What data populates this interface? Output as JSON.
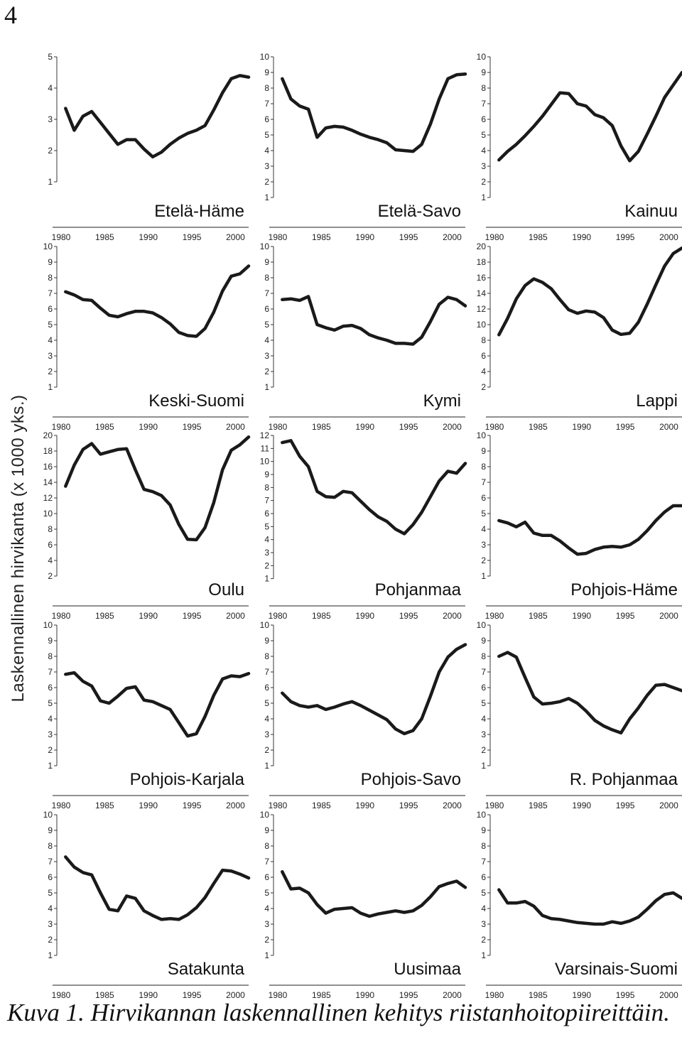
{
  "page_number": "4",
  "ylabel": "Laskennallinen hirvikanta (x 1000 yks.)",
  "caption": "Kuva 1. Hirvikannan laskennallinen kehitys riistanhoitopiireittäin.",
  "line_color": "#1a1a1a",
  "chart_data": [
    {
      "type": "line",
      "title": "Etelä-Häme",
      "xlim": [
        1980,
        2002
      ],
      "ylim": [
        0,
        5
      ],
      "yticks": [
        1,
        2,
        3,
        4,
        5
      ],
      "xticks": [
        1980,
        1985,
        1990,
        1995,
        2000
      ],
      "x": [
        1981,
        1982,
        1983,
        1984,
        1985,
        1986,
        1987,
        1988,
        1989,
        1990,
        1991,
        1992,
        1993,
        1994,
        1995,
        1996,
        1997,
        1998,
        1999,
        2000,
        2001,
        2002
      ],
      "values": [
        3.35,
        2.65,
        3.1,
        3.25,
        2.9,
        2.55,
        2.2,
        2.35,
        2.35,
        2.05,
        1.8,
        1.95,
        2.2,
        2.4,
        2.55,
        2.65,
        2.8,
        3.3,
        3.85,
        4.3,
        4.4,
        4.35
      ]
    },
    {
      "type": "line",
      "title": "Etelä-Savo",
      "xlim": [
        1980,
        2002
      ],
      "ylim": [
        0,
        10
      ],
      "yticks": [
        1,
        2,
        3,
        4,
        5,
        6,
        7,
        8,
        9,
        10
      ],
      "xticks": [
        1980,
        1985,
        1990,
        1995,
        2000
      ],
      "x": [
        1981,
        1982,
        1983,
        1984,
        1985,
        1986,
        1987,
        1988,
        1989,
        1990,
        1991,
        1992,
        1993,
        1994,
        1995,
        1996,
        1997,
        1998,
        1999,
        2000,
        2001,
        2002
      ],
      "values": [
        8.6,
        7.3,
        6.85,
        6.65,
        4.85,
        5.45,
        5.55,
        5.5,
        5.3,
        5.05,
        4.85,
        4.7,
        4.5,
        4.05,
        4.0,
        3.95,
        4.4,
        5.7,
        7.3,
        8.6,
        8.85,
        8.9
      ]
    },
    {
      "type": "line",
      "title": "Kainuu",
      "xlim": [
        1980,
        2002
      ],
      "ylim": [
        0,
        10
      ],
      "yticks": [
        1,
        2,
        3,
        4,
        5,
        6,
        7,
        8,
        9,
        10
      ],
      "xticks": [
        1980,
        1985,
        1990,
        1995,
        2000
      ],
      "x": [
        1981,
        1982,
        1983,
        1984,
        1985,
        1986,
        1987,
        1988,
        1989,
        1990,
        1991,
        1992,
        1993,
        1994,
        1995,
        1996,
        1997,
        1998,
        1999,
        2000,
        2001,
        2002
      ],
      "values": [
        3.4,
        3.95,
        4.4,
        4.95,
        5.55,
        6.2,
        6.95,
        7.7,
        7.65,
        7.0,
        6.85,
        6.3,
        6.1,
        5.6,
        4.3,
        3.35,
        3.95,
        5.05,
        6.2,
        7.4,
        8.2,
        9.0
      ]
    },
    {
      "type": "line",
      "title": "Keski-Suomi",
      "xlim": [
        1980,
        2002
      ],
      "ylim": [
        0,
        10
      ],
      "yticks": [
        1,
        2,
        3,
        4,
        5,
        6,
        7,
        8,
        9,
        10
      ],
      "xticks": [
        1980,
        1985,
        1990,
        1995,
        2000
      ],
      "x": [
        1981,
        1982,
        1983,
        1984,
        1985,
        1986,
        1987,
        1988,
        1989,
        1990,
        1991,
        1992,
        1993,
        1994,
        1995,
        1996,
        1997,
        1998,
        1999,
        2000,
        2001,
        2002
      ],
      "values": [
        7.1,
        6.9,
        6.6,
        6.55,
        6.05,
        5.6,
        5.5,
        5.7,
        5.85,
        5.85,
        5.75,
        5.45,
        5.05,
        4.5,
        4.3,
        4.25,
        4.75,
        5.8,
        7.15,
        8.1,
        8.25,
        8.75
      ]
    },
    {
      "type": "line",
      "title": "Kymi",
      "xlim": [
        1980,
        2002
      ],
      "ylim": [
        0,
        10
      ],
      "yticks": [
        1,
        2,
        3,
        4,
        5,
        6,
        7,
        8,
        9,
        10
      ],
      "xticks": [
        1980,
        1985,
        1990,
        1995,
        2000
      ],
      "x": [
        1981,
        1982,
        1983,
        1984,
        1985,
        1986,
        1987,
        1988,
        1989,
        1990,
        1991,
        1992,
        1993,
        1994,
        1995,
        1996,
        1997,
        1998,
        1999,
        2000,
        2001,
        2002
      ],
      "values": [
        6.6,
        6.65,
        6.55,
        6.8,
        5.0,
        4.8,
        4.65,
        4.9,
        4.95,
        4.75,
        4.35,
        4.15,
        4.0,
        3.8,
        3.8,
        3.75,
        4.2,
        5.2,
        6.3,
        6.75,
        6.6,
        6.2
      ]
    },
    {
      "type": "line",
      "title": "Lappi",
      "xlim": [
        1980,
        2002
      ],
      "ylim": [
        0,
        20
      ],
      "yticks": [
        2,
        4,
        6,
        8,
        10,
        12,
        14,
        16,
        18,
        20
      ],
      "xticks": [
        1980,
        1985,
        1990,
        1995,
        2000
      ],
      "x": [
        1981,
        1982,
        1983,
        1984,
        1985,
        1986,
        1987,
        1988,
        1989,
        1990,
        1991,
        1992,
        1993,
        1994,
        1995,
        1996,
        1997,
        1998,
        1999,
        2000,
        2001,
        2002
      ],
      "values": [
        8.7,
        10.8,
        13.3,
        15.0,
        15.85,
        15.4,
        14.6,
        13.2,
        11.9,
        11.45,
        11.75,
        11.6,
        10.9,
        9.3,
        8.75,
        8.9,
        10.3,
        12.6,
        15.1,
        17.5,
        19.1,
        19.8
      ]
    },
    {
      "type": "line",
      "title": "Oulu",
      "xlim": [
        1980,
        2002
      ],
      "ylim": [
        0,
        20
      ],
      "yticks": [
        2,
        4,
        6,
        8,
        10,
        12,
        14,
        16,
        18,
        20
      ],
      "xticks": [
        1980,
        1985,
        1990,
        1995,
        2000
      ],
      "x": [
        1981,
        1982,
        1983,
        1984,
        1985,
        1986,
        1987,
        1988,
        1989,
        1990,
        1991,
        1992,
        1993,
        1994,
        1995,
        1996,
        1997,
        1998,
        1999,
        2000,
        2001,
        2002
      ],
      "values": [
        13.5,
        16.2,
        18.2,
        18.95,
        17.6,
        17.9,
        18.2,
        18.3,
        15.6,
        13.1,
        12.8,
        12.3,
        11.1,
        8.6,
        6.7,
        6.65,
        8.2,
        11.4,
        15.6,
        18.1,
        18.8,
        19.8
      ]
    },
    {
      "type": "line",
      "title": "Pohjanmaa",
      "xlim": [
        1980,
        2002
      ],
      "ylim": [
        0,
        12
      ],
      "yticks": [
        1,
        2,
        3,
        4,
        5,
        6,
        7,
        8,
        9,
        10,
        11,
        12
      ],
      "xticks": [
        1980,
        1985,
        1990,
        1995,
        2000
      ],
      "x": [
        1981,
        1982,
        1983,
        1984,
        1985,
        1986,
        1987,
        1988,
        1989,
        1990,
        1991,
        1992,
        1993,
        1994,
        1995,
        1996,
        1997,
        1998,
        1999,
        2000,
        2001,
        2002
      ],
      "values": [
        11.45,
        11.6,
        10.4,
        9.6,
        7.7,
        7.3,
        7.25,
        7.7,
        7.6,
        6.95,
        6.3,
        5.75,
        5.4,
        4.8,
        4.45,
        5.15,
        6.1,
        7.3,
        8.5,
        9.25,
        9.1,
        9.85
      ]
    },
    {
      "type": "line",
      "title": "Pohjois-Häme",
      "xlim": [
        1980,
        2002
      ],
      "ylim": [
        0,
        10
      ],
      "yticks": [
        1,
        2,
        3,
        4,
        5,
        6,
        7,
        8,
        9,
        10
      ],
      "xticks": [
        1980,
        1985,
        1990,
        1995,
        2000
      ],
      "x": [
        1981,
        1982,
        1983,
        1984,
        1985,
        1986,
        1987,
        1988,
        1989,
        1990,
        1991,
        1992,
        1993,
        1994,
        1995,
        1996,
        1997,
        1998,
        1999,
        2000,
        2001,
        2002
      ],
      "values": [
        4.55,
        4.4,
        4.15,
        4.45,
        3.75,
        3.6,
        3.6,
        3.25,
        2.8,
        2.4,
        2.45,
        2.7,
        2.85,
        2.9,
        2.85,
        3.0,
        3.35,
        3.9,
        4.55,
        5.1,
        5.5,
        5.5
      ]
    },
    {
      "type": "line",
      "title": "Pohjois-Karjala",
      "xlim": [
        1980,
        2002
      ],
      "ylim": [
        0,
        10
      ],
      "yticks": [
        1,
        2,
        3,
        4,
        5,
        6,
        7,
        8,
        9,
        10
      ],
      "xticks": [
        1980,
        1985,
        1990,
        1995,
        2000
      ],
      "x": [
        1981,
        1982,
        1983,
        1984,
        1985,
        1986,
        1987,
        1988,
        1989,
        1990,
        1991,
        1992,
        1993,
        1994,
        1995,
        1996,
        1997,
        1998,
        1999,
        2000,
        2001,
        2002
      ],
      "values": [
        6.85,
        6.95,
        6.4,
        6.1,
        5.15,
        5.0,
        5.45,
        5.95,
        6.05,
        5.2,
        5.1,
        4.85,
        4.6,
        3.75,
        2.9,
        3.05,
        4.15,
        5.5,
        6.55,
        6.75,
        6.7,
        6.9
      ]
    },
    {
      "type": "line",
      "title": "Pohjois-Savo",
      "xlim": [
        1980,
        2002
      ],
      "ylim": [
        0,
        10
      ],
      "yticks": [
        1,
        2,
        3,
        4,
        5,
        6,
        7,
        8,
        9,
        10
      ],
      "xticks": [
        1980,
        1985,
        1990,
        1995,
        2000
      ],
      "x": [
        1981,
        1982,
        1983,
        1984,
        1985,
        1986,
        1987,
        1988,
        1989,
        1990,
        1991,
        1992,
        1993,
        1994,
        1995,
        1996,
        1997,
        1998,
        1999,
        2000,
        2001,
        2002
      ],
      "values": [
        5.65,
        5.1,
        4.85,
        4.75,
        4.85,
        4.6,
        4.75,
        4.95,
        5.1,
        4.85,
        4.55,
        4.25,
        3.95,
        3.35,
        3.05,
        3.25,
        4.0,
        5.45,
        7.0,
        7.95,
        8.45,
        8.75
      ]
    },
    {
      "type": "line",
      "title": "R. Pohjanmaa",
      "xlim": [
        1980,
        2002
      ],
      "ylim": [
        0,
        10
      ],
      "yticks": [
        1,
        2,
        3,
        4,
        5,
        6,
        7,
        8,
        9,
        10
      ],
      "xticks": [
        1980,
        1985,
        1990,
        1995,
        2000
      ],
      "x": [
        1981,
        1982,
        1983,
        1984,
        1985,
        1986,
        1987,
        1988,
        1989,
        1990,
        1991,
        1992,
        1993,
        1994,
        1995,
        1996,
        1997,
        1998,
        1999,
        2000,
        2001,
        2002
      ],
      "values": [
        8.0,
        8.25,
        7.95,
        6.65,
        5.4,
        4.95,
        5.0,
        5.1,
        5.3,
        5.0,
        4.5,
        3.9,
        3.55,
        3.3,
        3.1,
        4.0,
        4.7,
        5.5,
        6.15,
        6.2,
        6.0,
        5.8
      ]
    },
    {
      "type": "line",
      "title": "Satakunta",
      "xlim": [
        1980,
        2002
      ],
      "ylim": [
        0,
        10
      ],
      "yticks": [
        1,
        2,
        3,
        4,
        5,
        6,
        7,
        8,
        9,
        10
      ],
      "xticks": [
        1980,
        1985,
        1990,
        1995,
        2000
      ],
      "x": [
        1981,
        1982,
        1983,
        1984,
        1985,
        1986,
        1987,
        1988,
        1989,
        1990,
        1991,
        1992,
        1993,
        1994,
        1995,
        1996,
        1997,
        1998,
        1999,
        2000,
        2001,
        2002
      ],
      "values": [
        7.3,
        6.65,
        6.3,
        6.15,
        5.0,
        3.95,
        3.85,
        4.8,
        4.65,
        3.85,
        3.55,
        3.3,
        3.35,
        3.3,
        3.6,
        4.05,
        4.7,
        5.6,
        6.45,
        6.4,
        6.2,
        5.95
      ]
    },
    {
      "type": "line",
      "title": "Uusimaa",
      "xlim": [
        1980,
        2002
      ],
      "ylim": [
        0,
        10
      ],
      "yticks": [
        1,
        2,
        3,
        4,
        5,
        6,
        7,
        8,
        9,
        10
      ],
      "xticks": [
        1980,
        1985,
        1990,
        1995,
        2000
      ],
      "x": [
        1981,
        1982,
        1983,
        1984,
        1985,
        1986,
        1987,
        1988,
        1989,
        1990,
        1991,
        1992,
        1993,
        1994,
        1995,
        1996,
        1997,
        1998,
        1999,
        2000,
        2001,
        2002
      ],
      "values": [
        6.35,
        5.25,
        5.3,
        5.0,
        4.25,
        3.7,
        3.95,
        4.0,
        4.05,
        3.7,
        3.5,
        3.65,
        3.75,
        3.85,
        3.75,
        3.85,
        4.2,
        4.75,
        5.4,
        5.6,
        5.75,
        5.35
      ]
    },
    {
      "type": "line",
      "title": "Varsinais-Suomi",
      "xlim": [
        1980,
        2002
      ],
      "ylim": [
        0,
        10
      ],
      "yticks": [
        1,
        2,
        3,
        4,
        5,
        6,
        7,
        8,
        9,
        10
      ],
      "xticks": [
        1980,
        1985,
        1990,
        1995,
        2000
      ],
      "x": [
        1981,
        1982,
        1983,
        1984,
        1985,
        1986,
        1987,
        1988,
        1989,
        1990,
        1991,
        1992,
        1993,
        1994,
        1995,
        1996,
        1997,
        1998,
        1999,
        2000,
        2001,
        2002
      ],
      "values": [
        5.2,
        4.35,
        4.35,
        4.45,
        4.15,
        3.55,
        3.35,
        3.3,
        3.2,
        3.1,
        3.05,
        3.0,
        3.0,
        3.15,
        3.05,
        3.2,
        3.45,
        3.95,
        4.5,
        4.9,
        5.0,
        4.65
      ]
    }
  ]
}
